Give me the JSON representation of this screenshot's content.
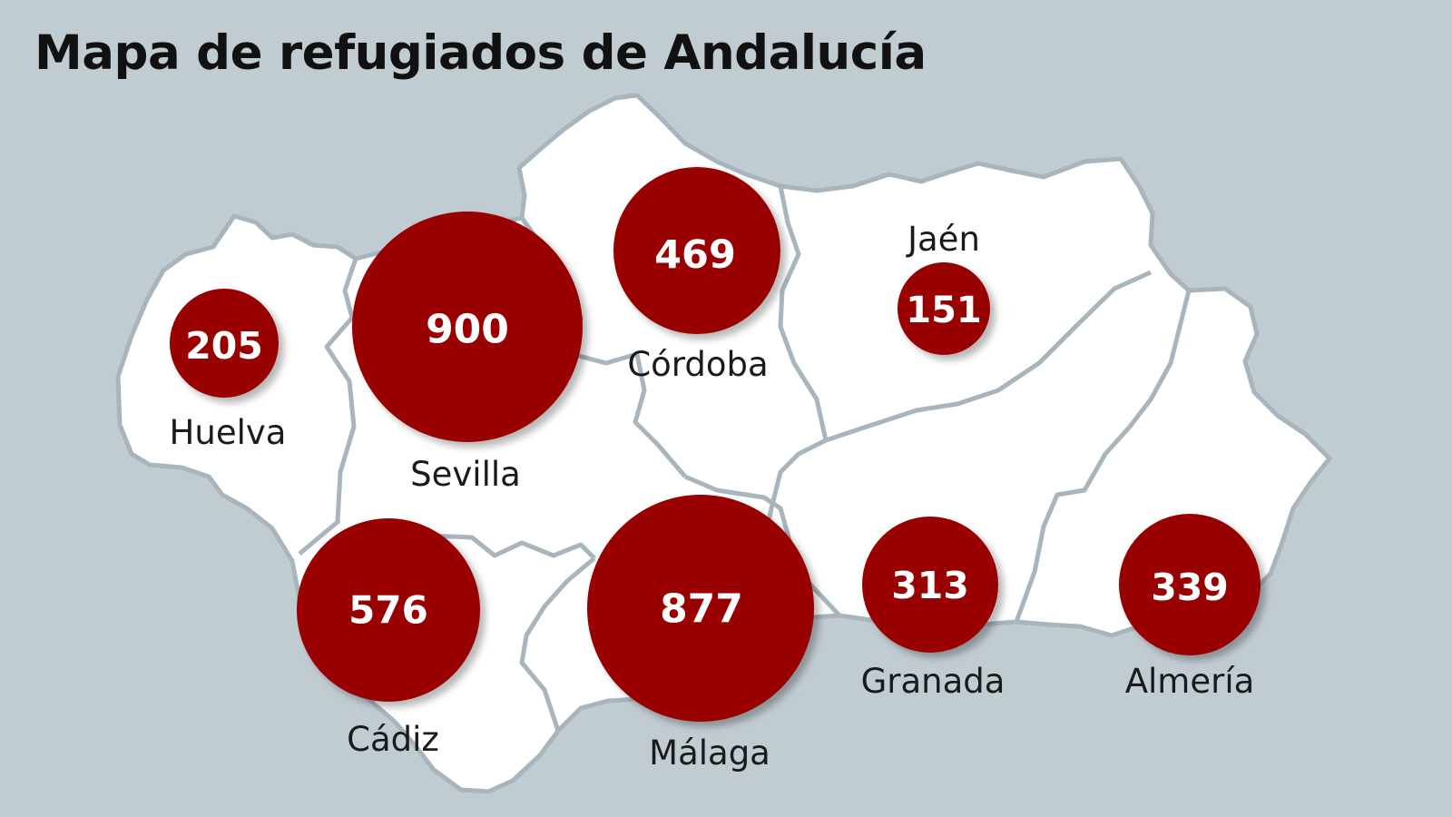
{
  "title": "Mapa de refugiados de Andalucía",
  "colors": {
    "background": "#c1ccd2",
    "land": "#ffffff",
    "border": "#a8b5bc",
    "bubble": "#990000",
    "bubble_text": "#ffffff"
  },
  "provinces": [
    {
      "name": "Huelva",
      "value": "205"
    },
    {
      "name": "Sevilla",
      "value": "900"
    },
    {
      "name": "Córdoba",
      "value": "469"
    },
    {
      "name": "Jaén",
      "value": "151"
    },
    {
      "name": "Cádiz",
      "value": "576"
    },
    {
      "name": "Málaga",
      "value": "877"
    },
    {
      "name": "Granada",
      "value": "313"
    },
    {
      "name": "Almería",
      "value": "339"
    }
  ]
}
